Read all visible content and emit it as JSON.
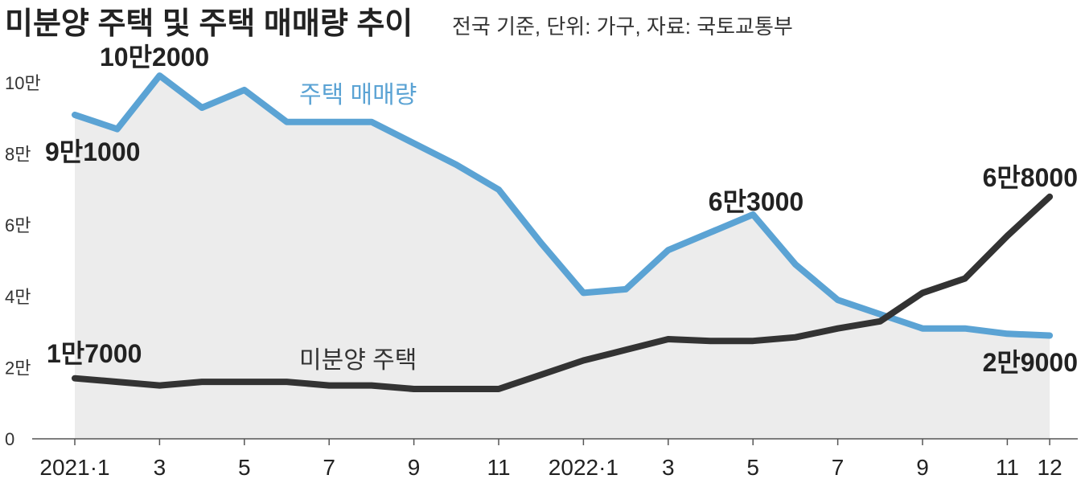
{
  "title": "미분양 주택 및 주택 매매량 추이",
  "subtitle": "전국 기준, 단위: 가구, 자료: 국토교통부",
  "chart_data": {
    "type": "line",
    "x": [
      "2021-1",
      "2021-2",
      "2021-3",
      "2021-4",
      "2021-5",
      "2021-6",
      "2021-7",
      "2021-8",
      "2021-9",
      "2021-10",
      "2021-11",
      "2021-12",
      "2022-1",
      "2022-2",
      "2022-3",
      "2022-4",
      "2022-5",
      "2022-6",
      "2022-7",
      "2022-8",
      "2022-9",
      "2022-10",
      "2022-11",
      "2022-12"
    ],
    "xtick_labels": [
      "2021·1",
      "3",
      "5",
      "7",
      "9",
      "11",
      "2022·1",
      "3",
      "5",
      "7",
      "9",
      "11",
      "12"
    ],
    "xtick_index": [
      0,
      2,
      4,
      6,
      8,
      10,
      12,
      14,
      16,
      18,
      20,
      22,
      23
    ],
    "ytick_labels": [
      "0",
      "2만",
      "4만",
      "6만",
      "8만",
      "10만"
    ],
    "ytick_values": [
      0,
      20000,
      40000,
      60000,
      80000,
      100000
    ],
    "ylim": [
      0,
      110000
    ],
    "grid": false,
    "series": [
      {
        "name": "주택 매매량",
        "color": "#5ba3d4",
        "area_fill": "#ececec",
        "values": [
          91000,
          87000,
          102000,
          93000,
          98000,
          89000,
          89000,
          89000,
          83000,
          77000,
          70000,
          55000,
          41000,
          42000,
          53000,
          58000,
          63000,
          49000,
          39000,
          35000,
          31000,
          31000,
          29500,
          29000
        ]
      },
      {
        "name": "미분양 주택",
        "color": "#333333",
        "values": [
          17000,
          16000,
          15000,
          16000,
          16000,
          16000,
          15000,
          15000,
          14000,
          14000,
          14000,
          18000,
          22000,
          25000,
          28000,
          27500,
          27500,
          28500,
          31000,
          33000,
          41000,
          45000,
          57000,
          68000
        ]
      }
    ],
    "annotations": [
      {
        "series": 0,
        "index": 0,
        "text": "9만1000"
      },
      {
        "series": 0,
        "index": 2,
        "text": "10만2000"
      },
      {
        "series": 0,
        "index": 16,
        "text": "6만3000"
      },
      {
        "series": 0,
        "index": 23,
        "text": "2만9000"
      },
      {
        "series": 1,
        "index": 0,
        "text": "1만7000"
      },
      {
        "series": 1,
        "index": 23,
        "text": "6만8000"
      }
    ]
  }
}
